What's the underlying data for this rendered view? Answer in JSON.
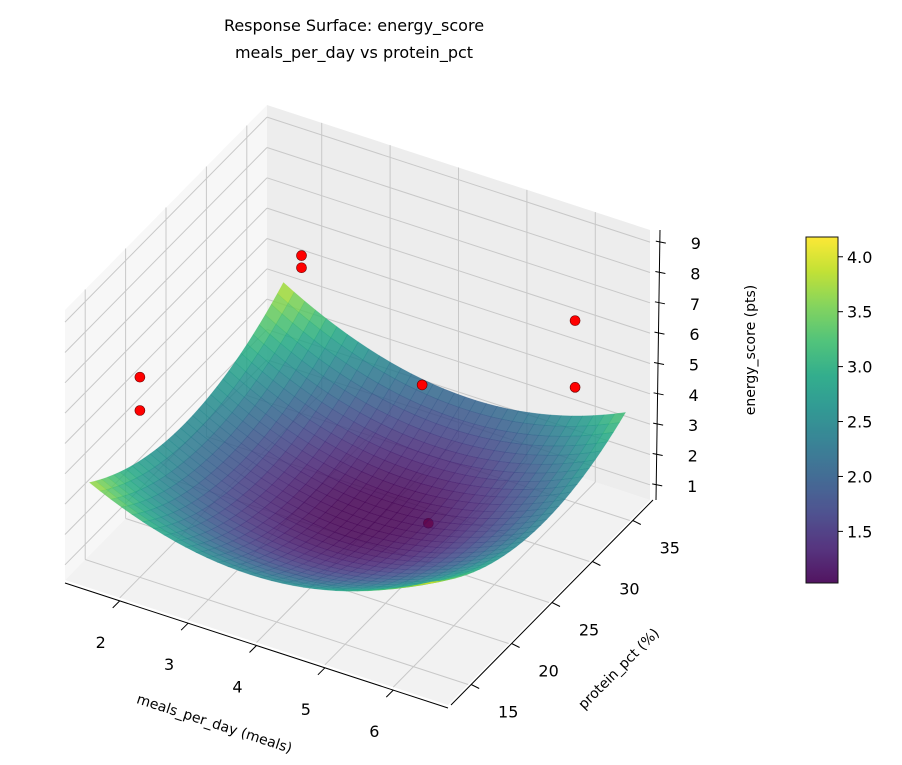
{
  "chart_data": {
    "type": "surface3d",
    "title": "Response Surface: energy_score",
    "subtitle": "meals_per_day vs protein_pct",
    "xlabel": "meals_per_day (meals)",
    "ylabel": "protein_pct (%)",
    "zlabel": "energy_score (pts)",
    "xlim": [
      1.2,
      6.8
    ],
    "ylim": [
      12.5,
      37.5
    ],
    "zlim": [
      0.5,
      9.4
    ],
    "x_ticks": [
      "2",
      "3",
      "4",
      "5",
      "6"
    ],
    "y_ticks": [
      "15",
      "20",
      "25",
      "30",
      "35"
    ],
    "z_ticks": [
      "1",
      "2",
      "3",
      "4",
      "5",
      "6",
      "7",
      "8",
      "9"
    ],
    "grid": true,
    "surface": {
      "colormap": "viridis",
      "x": [
        1.5,
        2.75,
        4,
        5.25,
        6.5
      ],
      "y": [
        13,
        19,
        25,
        31,
        37
      ],
      "z": [
        [
          3.8,
          2.78,
          2.5,
          2.98,
          4.2
        ],
        [
          2.85,
          1.76,
          1.43,
          1.84,
          3.0
        ],
        [
          2.55,
          1.4,
          1.0,
          1.35,
          2.45
        ],
        [
          2.9,
          1.69,
          1.23,
          1.51,
          2.55
        ],
        [
          3.9,
          2.63,
          2.1,
          2.33,
          3.3
        ]
      ]
    },
    "points": {
      "color": "#ff0000",
      "x": [
        2,
        2,
        2,
        2,
        4,
        6,
        6,
        4.8
      ],
      "y": [
        35,
        35,
        15,
        15,
        33,
        35,
        35,
        27
      ],
      "z": [
        5.7,
        5.3,
        7.1,
        6.0,
        3.45,
        6.5,
        4.3,
        1.1
      ]
    },
    "colorbar": {
      "range": [
        1.03,
        4.18
      ],
      "ticks": [
        1.5,
        2.0,
        2.5,
        3.0,
        3.5,
        4.0
      ],
      "tick_labels": [
        "1.5",
        "2.0",
        "2.5",
        "3.0",
        "3.5",
        "4.0"
      ],
      "location": "right"
    }
  }
}
